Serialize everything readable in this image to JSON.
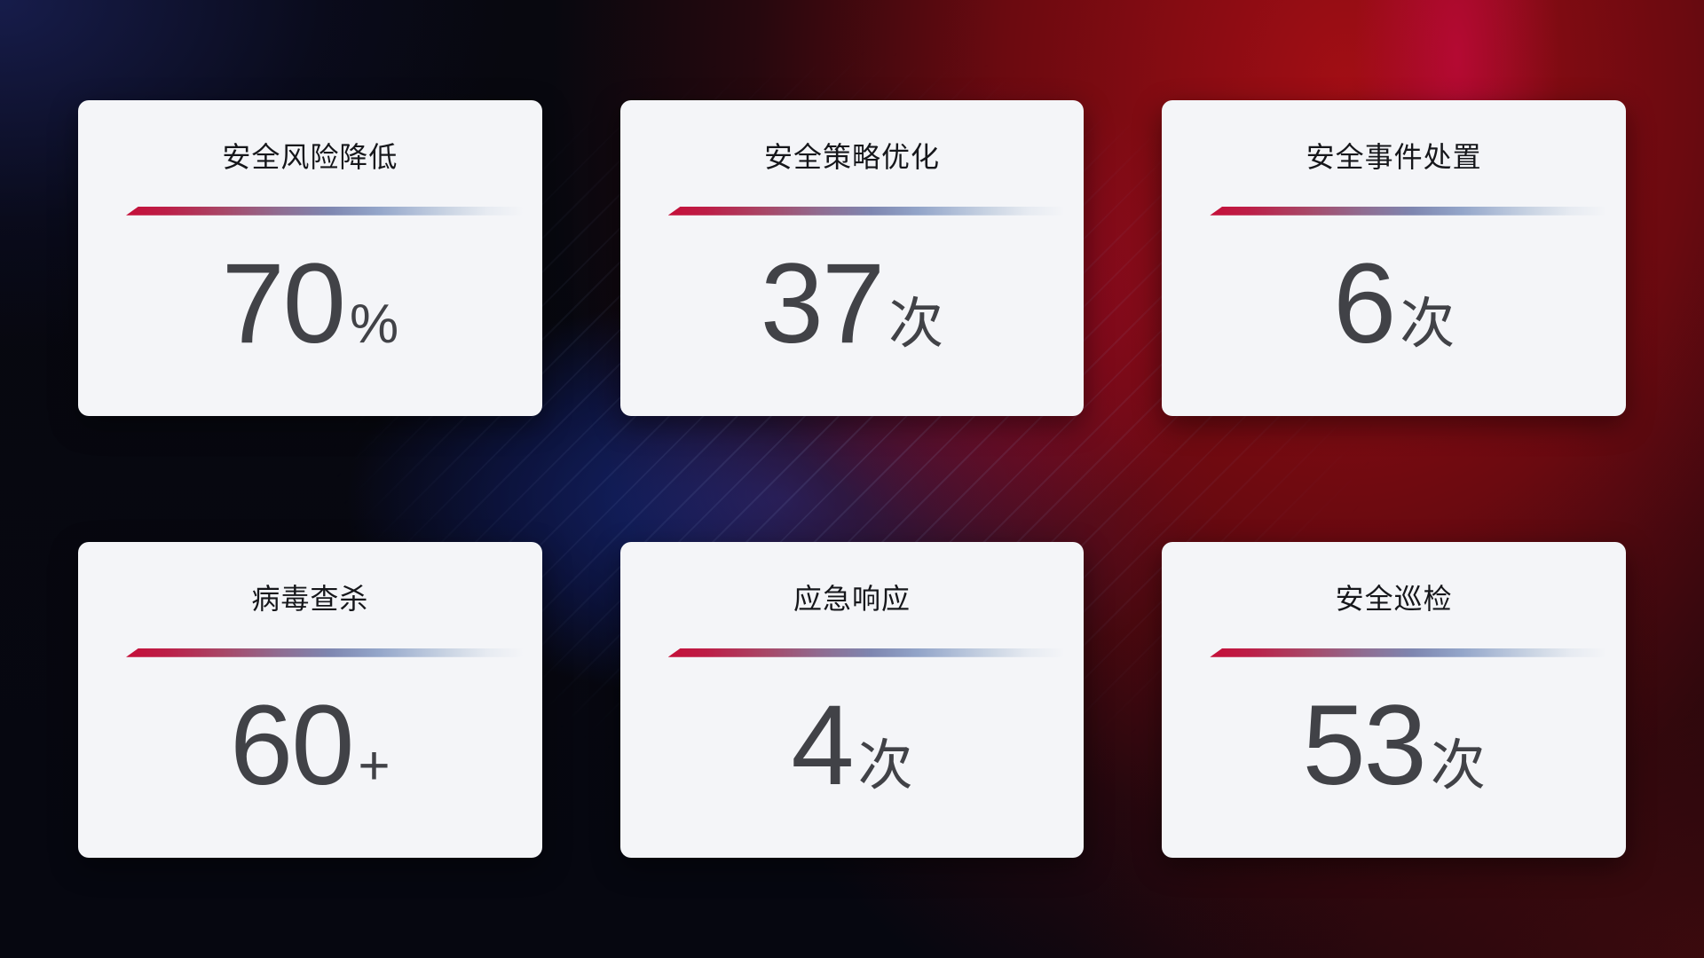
{
  "cards": [
    {
      "title": "安全风险降低",
      "value": "70",
      "unit": "%"
    },
    {
      "title": "安全策略优化",
      "value": "37",
      "unit": "次"
    },
    {
      "title": "安全事件处置",
      "value": "6",
      "unit": "次"
    },
    {
      "title": "病毒查杀",
      "value": "60",
      "unit": "+"
    },
    {
      "title": "应急响应",
      "value": "4",
      "unit": "次"
    },
    {
      "title": "安全巡检",
      "value": "53",
      "unit": "次"
    }
  ],
  "colors": {
    "card_bg": "#f4f5f8",
    "title_text": "#16171b",
    "value_text": "#414247",
    "divider_red": "#c50f39",
    "divider_blue": "#b3c1d9",
    "bg_red": "#a80e15",
    "bg_blue": "#1a2d86",
    "bg_base": "#07080f"
  }
}
